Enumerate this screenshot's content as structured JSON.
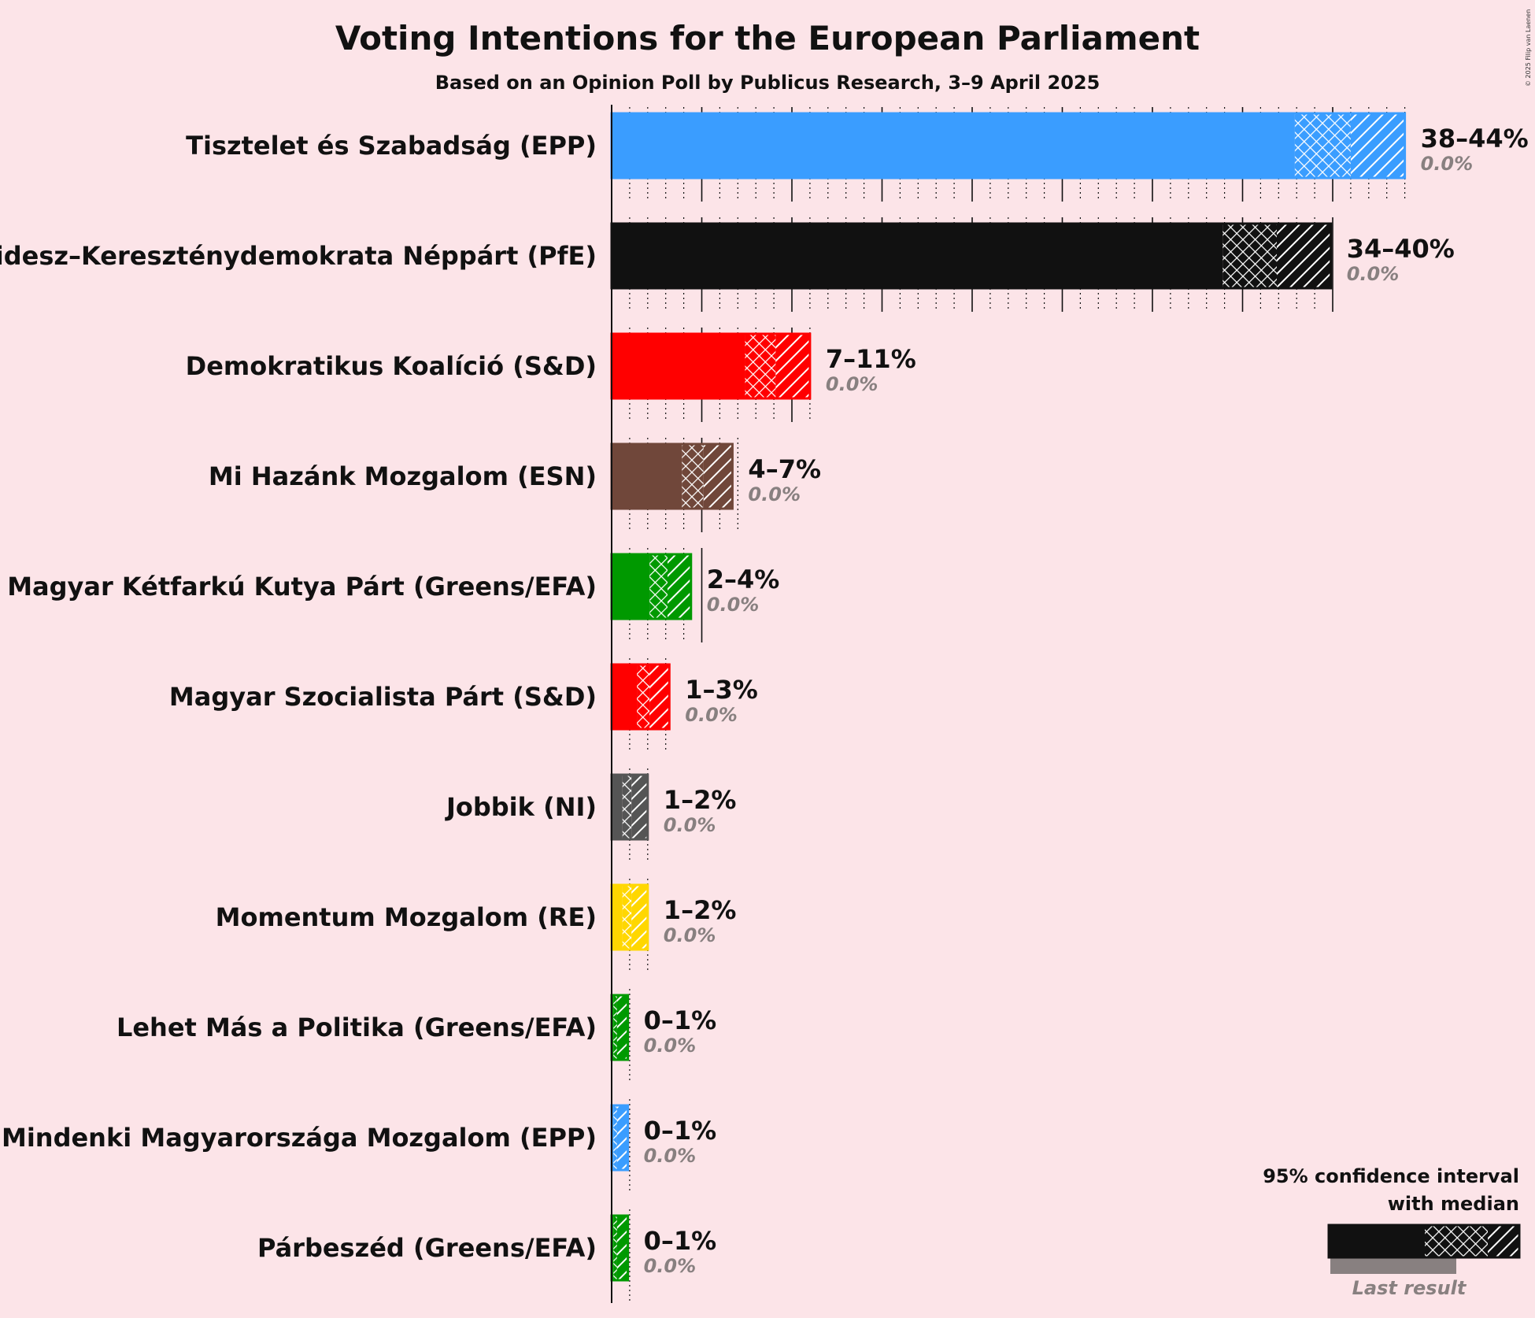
{
  "title": "Voting Intentions for the European Parliament",
  "subtitle": "Based on an Opinion Poll by Publicus Research, 3–9 April 2025",
  "copyright": "© 2025 Filip van Laenen",
  "legend": {
    "line1": "95% confidence interval",
    "line2": "with median",
    "last_result": "Last result"
  },
  "chart_data": {
    "type": "bar",
    "orientation": "horizontal",
    "title": "Voting Intentions for the European Parliament",
    "subtitle": "Based on an Opinion Poll by Publicus Research, 3–9 April 2025",
    "unit": "%",
    "xlim": [
      0,
      44
    ],
    "series": [
      {
        "party": "Tisztelet és Szabadság (EPP)",
        "color": "#3A9DFF",
        "low": 37.9,
        "median": 41.0,
        "high": 44.0,
        "range_label": "38–44%",
        "last_result": 0.0,
        "last_label": "0.0%"
      },
      {
        "party": "Fidesz–Kereszténydemokrata Néppárt (PfE)",
        "color": "#111111",
        "low": 33.9,
        "median": 36.9,
        "high": 39.9,
        "range_label": "34–40%",
        "last_result": 0.0,
        "last_label": "0.0%"
      },
      {
        "party": "Demokratikus Koalíció (S&D)",
        "color": "#FF0000",
        "low": 7.4,
        "median": 9.1,
        "high": 11.0,
        "range_label": "7–11%",
        "last_result": 0.0,
        "last_label": "0.0%"
      },
      {
        "party": "Mi Hazánk Mozgalom (ESN)",
        "color": "#70473A",
        "low": 3.9,
        "median": 5.1,
        "high": 6.7,
        "range_label": "4–7%",
        "last_result": 0.0,
        "last_label": "0.0%"
      },
      {
        "party": "Magyar Kétfarkú Kutya Párt (Greens/EFA)",
        "color": "#009900",
        "low": 2.1,
        "median": 3.1,
        "high": 4.4,
        "range_label": "2–4%",
        "last_result": 0.0,
        "last_label": "0.0%"
      },
      {
        "party": "Magyar Szocialista Párt (S&D)",
        "color": "#FF0000",
        "low": 1.4,
        "median": 2.1,
        "high": 3.2,
        "range_label": "1–3%",
        "last_result": 0.0,
        "last_label": "0.0%"
      },
      {
        "party": "Jobbik (NI)",
        "color": "#555555",
        "low": 0.6,
        "median": 1.1,
        "high": 2.0,
        "range_label": "1–2%",
        "last_result": 0.0,
        "last_label": "0.0%"
      },
      {
        "party": "Momentum Mozgalom (RE)",
        "color": "#FFD700",
        "low": 0.6,
        "median": 1.1,
        "high": 2.0,
        "range_label": "1–2%",
        "last_result": 0.0,
        "last_label": "0.0%"
      },
      {
        "party": "Lehet Más a Politika (Greens/EFA)",
        "color": "#009900",
        "low": 0.1,
        "median": 0.3,
        "high": 0.9,
        "range_label": "0–1%",
        "last_result": 0.0,
        "last_label": "0.0%"
      },
      {
        "party": "Mindenki Magyarországa Mozgalom (EPP)",
        "color": "#3A9DFF",
        "low": 0.1,
        "median": 0.3,
        "high": 0.9,
        "range_label": "0–1%",
        "last_result": 0.0,
        "last_label": "0.0%"
      },
      {
        "party": "Párbeszéd (Greens/EFA)",
        "color": "#009900",
        "low": 0.1,
        "median": 0.3,
        "high": 0.9,
        "range_label": "0–1%",
        "last_result": 0.0,
        "last_label": "0.0%"
      }
    ]
  }
}
